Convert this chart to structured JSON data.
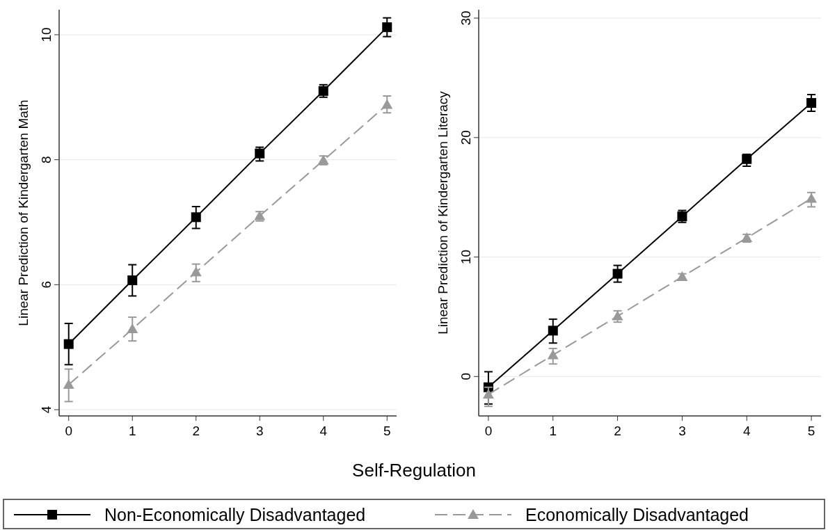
{
  "chart_data": [
    {
      "type": "line",
      "xlabel": "Self-Regulation",
      "ylabel": "Linear Prediction of Kindergarten Math",
      "x": [
        0,
        1,
        2,
        3,
        4,
        5
      ],
      "xlim": [
        -0.15,
        5.15
      ],
      "xticks": [
        0,
        1,
        2,
        3,
        4,
        5
      ],
      "ylim": [
        3.9,
        10.4
      ],
      "yticks": [
        4,
        6,
        8,
        10
      ],
      "grid": "y",
      "legend": "bottom",
      "series": [
        {
          "name": "Non-Economically Disadvantaged",
          "color": "#000000",
          "marker": "square",
          "line_style": "solid",
          "values": [
            5.05,
            6.07,
            7.08,
            8.1,
            9.1,
            10.12
          ],
          "errors": [
            [
              4.72,
              5.38
            ],
            [
              5.82,
              6.32
            ],
            [
              6.9,
              7.25
            ],
            [
              7.98,
              8.2
            ],
            [
              9.0,
              9.2
            ],
            [
              9.97,
              10.27
            ]
          ]
        },
        {
          "name": "Economically Disadvantaged",
          "color": "#999999",
          "marker": "triangle",
          "line_style": "dashed",
          "values": [
            4.4,
            5.29,
            6.2,
            7.1,
            7.99,
            8.88
          ],
          "errors": [
            [
              4.13,
              4.65
            ],
            [
              5.1,
              5.48
            ],
            [
              6.05,
              6.33
            ],
            [
              7.02,
              7.17
            ],
            [
              7.92,
              8.06
            ],
            [
              8.75,
              9.02
            ]
          ]
        }
      ]
    },
    {
      "type": "line",
      "ylabel": "Linear Prediction of Kindergarten Literacy",
      "x": [
        0,
        1,
        2,
        3,
        4,
        5
      ],
      "xlim": [
        -0.15,
        5.15
      ],
      "xticks": [
        0,
        1,
        2,
        3,
        4,
        5
      ],
      "ylim": [
        -3.3,
        30.7
      ],
      "yticks": [
        0,
        10,
        20,
        30
      ],
      "grid": "y",
      "series": [
        {
          "color": "#000000",
          "marker": "square",
          "line_style": "solid",
          "values": [
            -0.9,
            3.84,
            8.6,
            13.4,
            18.2,
            22.9
          ],
          "errors": [
            [
              -2.3,
              0.4
            ],
            [
              2.8,
              4.8
            ],
            [
              7.9,
              9.3
            ],
            [
              12.9,
              13.9
            ],
            [
              17.6,
              18.6
            ],
            [
              22.2,
              23.6
            ]
          ]
        },
        {
          "color": "#999999",
          "marker": "triangle",
          "line_style": "dashed",
          "values": [
            -1.5,
            1.8,
            5.05,
            8.35,
            11.6,
            14.9
          ],
          "errors": [
            [
              -2.5,
              -0.9
            ],
            [
              1.05,
              2.35
            ],
            [
              4.55,
              5.5
            ],
            [
              8.1,
              8.6
            ],
            [
              11.25,
              11.9
            ],
            [
              14.2,
              15.4
            ]
          ]
        }
      ]
    }
  ]
}
